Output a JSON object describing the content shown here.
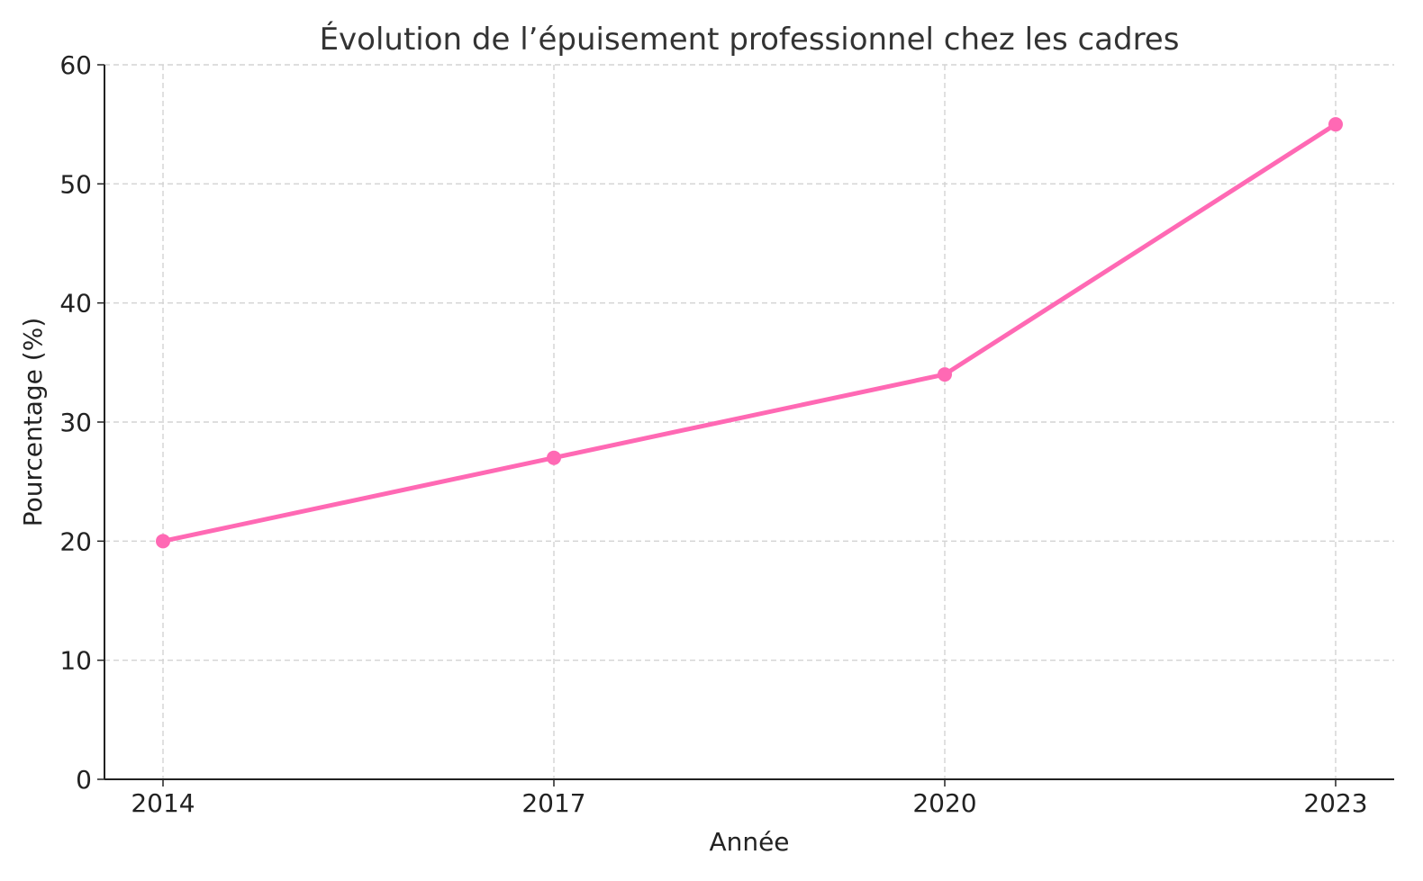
{
  "chart_data": {
    "type": "line",
    "title": "Évolution de l’épuisement professionnel chez les cadres",
    "xlabel": "Année",
    "ylabel": "Pourcentage (%)",
    "categories": [
      "2014",
      "2017",
      "2020",
      "2023"
    ],
    "series": [
      {
        "values": [
          20,
          27,
          34,
          55
        ],
        "color": "#ff69b4",
        "marker": "circle"
      }
    ],
    "ylim": [
      0,
      60
    ],
    "yticks": [
      0,
      10,
      20,
      30,
      40,
      50,
      60
    ],
    "grid": true,
    "legend": "none"
  }
}
